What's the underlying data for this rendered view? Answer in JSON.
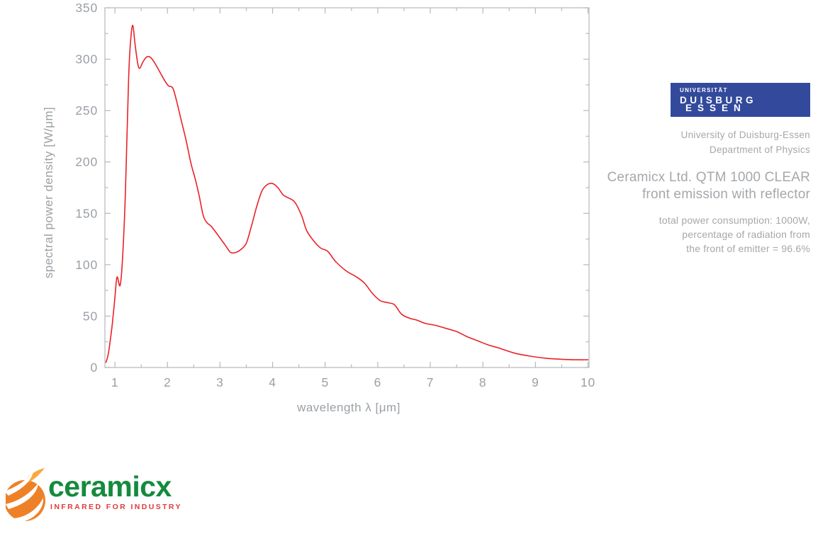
{
  "chart_data": {
    "type": "line",
    "title": "",
    "xlabel": "wavelength λ [μm]",
    "ylabel": "spectral power density [W/μm]",
    "xlim": [
      0.81,
      10.02
    ],
    "ylim": [
      0,
      350
    ],
    "x_major_ticks": [
      1,
      2,
      3,
      4,
      5,
      6,
      7,
      8,
      9,
      10
    ],
    "x_minor_step": 0.5,
    "y_major_ticks": [
      0,
      50,
      100,
      150,
      200,
      250,
      300,
      350
    ],
    "y_minor_step": 25,
    "grid": false,
    "legend": "none",
    "line_color": "#ea2127",
    "axis_color": "#b5b8bb",
    "tick_label_color": "#9ba0a5",
    "series": [
      {
        "name": "spectral power density",
        "x": [
          0.83,
          0.87,
          0.9,
          0.95,
          1.0,
          1.04,
          1.1,
          1.15,
          1.2,
          1.26,
          1.3,
          1.34,
          1.38,
          1.43,
          1.47,
          1.53,
          1.6,
          1.67,
          1.75,
          1.85,
          1.95,
          2.02,
          2.1,
          2.17,
          2.25,
          2.35,
          2.45,
          2.52,
          2.6,
          2.68,
          2.75,
          2.82,
          2.9,
          3.0,
          3.1,
          3.2,
          3.3,
          3.4,
          3.5,
          3.6,
          3.7,
          3.8,
          3.9,
          4.0,
          4.1,
          4.2,
          4.3,
          4.42,
          4.55,
          4.65,
          4.8,
          4.92,
          5.05,
          5.2,
          5.4,
          5.6,
          5.75,
          5.9,
          6.05,
          6.2,
          6.32,
          6.45,
          6.6,
          6.75,
          6.9,
          7.1,
          7.3,
          7.5,
          7.7,
          7.9,
          8.1,
          8.3,
          8.6,
          8.9,
          9.2,
          9.5,
          9.8,
          10.0
        ],
        "y": [
          5,
          12,
          22,
          42,
          68,
          88,
          80,
          110,
          170,
          280,
          318,
          333,
          316,
          297,
          291,
          297,
          302,
          302,
          297,
          288,
          279,
          274,
          272,
          260,
          243,
          222,
          198,
          185,
          168,
          148,
          141,
          138,
          133,
          126,
          119,
          112,
          112,
          115,
          121,
          138,
          157,
          172,
          178,
          179,
          175,
          168,
          165,
          161,
          148,
          133,
          122,
          116,
          113,
          103,
          94,
          88,
          82,
          72,
          65,
          63,
          61,
          52,
          48,
          46,
          43,
          41,
          38,
          35,
          30,
          26,
          22,
          19,
          14,
          11,
          9,
          8,
          7.5,
          7.5
        ]
      }
    ]
  },
  "panel": {
    "university_logo": {
      "line1": "UNIVERSITÄT",
      "line2": "DUISBURG",
      "line3": "ESSEN",
      "bg_color": "#33499b"
    },
    "affiliation_line1": "University of Duisburg-Essen",
    "affiliation_line2": "Department of Physics",
    "title_line1": "Ceramicx Ltd. QTM 1000 CLEAR",
    "title_line2": "front emission with reflector",
    "details_line1": "total power consumption: 1000W,",
    "details_line2": "percentage of radiation from",
    "details_line3": "the front of emitter = 96.6%"
  },
  "footer": {
    "brand_name": "ceramicx",
    "tagline": "INFRARED FOR INDUSTRY",
    "brand_color": "#158a3e",
    "tagline_color": "#e0393b",
    "flame_colors": [
      "#ee8127",
      "#f9a83f"
    ]
  }
}
